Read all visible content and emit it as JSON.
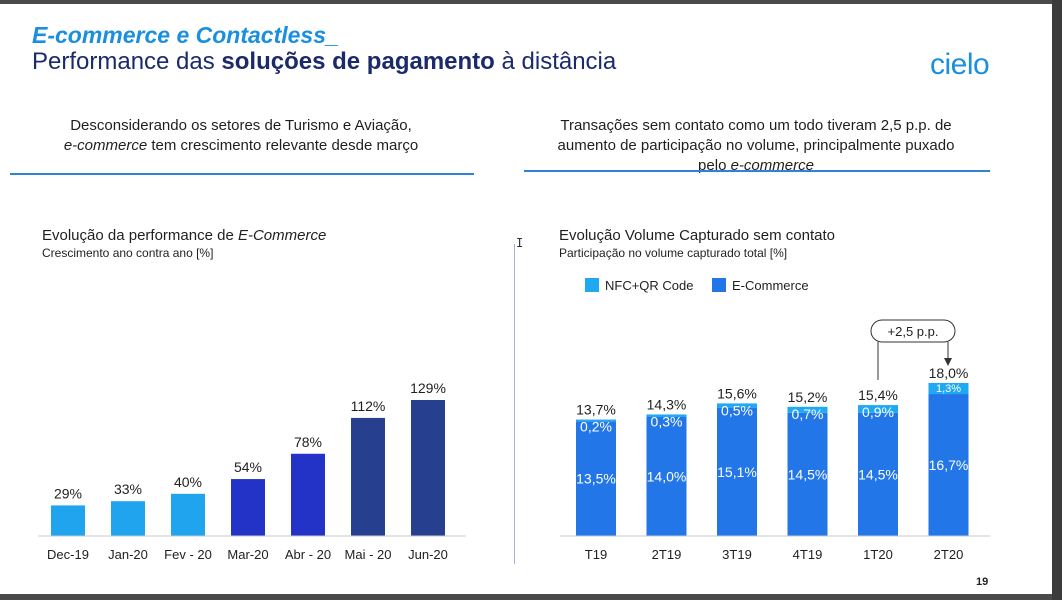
{
  "header": {
    "title": "E-commerce e Contactless_",
    "subtitle_pre": "Performance das ",
    "subtitle_bold": "soluções de pagamento",
    "subtitle_post": " à distância",
    "logo": "cielo"
  },
  "left": {
    "summary_line1": "Desconsiderando os setores de Turismo e Aviação,",
    "summary_italic": "e-commerce",
    "summary_line2": " tem crescimento relevante desde março"
  },
  "right": {
    "summary_line1": "Transações sem contato como um todo tiveram 2,5 p.p. de",
    "summary_line2": "aumento de participação no volume, principalmente puxado",
    "summary_line3": "pelo ",
    "summary_italic": "e-commerce"
  },
  "footer": {
    "page": "19"
  },
  "chart_data": [
    {
      "type": "bar",
      "title_pre": "Evolução da performance de ",
      "title_italic": "E-Commerce",
      "subtitle": "Crescimento ano contra ano [%]",
      "categories": [
        "Dec-19",
        "Jan-20",
        "Fev - 20",
        "Mar-20",
        "Abr - 20",
        "Mai - 20",
        "Jun-20"
      ],
      "values": [
        29,
        33,
        40,
        54,
        78,
        112,
        129
      ],
      "labels": [
        "29%",
        "33%",
        "40%",
        "54%",
        "78%",
        "112%",
        "129%"
      ],
      "colors": [
        "#20a4ee",
        "#20a4ee",
        "#20a4ee",
        "#2433c7",
        "#2433c7",
        "#263f8e",
        "#263f8e"
      ],
      "ylim": [
        0,
        129
      ]
    },
    {
      "type": "bar",
      "stacked": true,
      "title": "Evolução Volume Capturado sem contato",
      "subtitle": "Participação no volume capturado total [%]",
      "legend_position": "top",
      "categories": [
        "T19",
        "2T19",
        "3T19",
        "4T19",
        "1T20",
        "2T20"
      ],
      "series": [
        {
          "name": "E-Commerce",
          "color": "#2276e8",
          "values": [
            13.5,
            14.0,
            15.1,
            14.5,
            14.5,
            16.7
          ],
          "labels": [
            "13,5%",
            "14,0%",
            "15,1%",
            "14,5%",
            "14,5%",
            "16,7%"
          ]
        },
        {
          "name": "NFC+QR Code",
          "color": "#1fa9f2",
          "values": [
            0.2,
            0.3,
            0.5,
            0.7,
            0.9,
            1.3
          ],
          "labels": [
            "0,2%",
            "0,3%",
            "0,5%",
            "0,7%",
            "0,9%",
            "1,3%"
          ]
        }
      ],
      "totals": [
        13.7,
        14.3,
        15.6,
        15.2,
        15.4,
        18.0
      ],
      "total_labels": [
        "13,7%",
        "14,3%",
        "15,6%",
        "15,2%",
        "15,4%",
        "18,0%"
      ],
      "annotation": "+2,5 p.p.",
      "ylim": [
        0,
        18
      ]
    }
  ]
}
